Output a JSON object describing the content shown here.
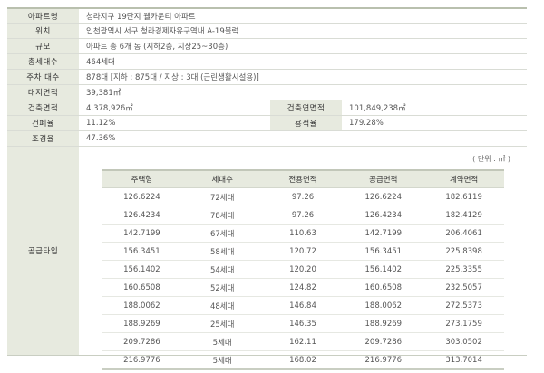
{
  "info": {
    "apartment_name": {
      "label": "아파트명",
      "value": "청라지구 19단지 웰카운티 아파트"
    },
    "location": {
      "label": "위치",
      "value": "인천광역시 서구 청라경제자유구역내 A-19블럭"
    },
    "scale": {
      "label": "규모",
      "value": "아파트 총 6개 동 (지하2층, 지상25~30층)"
    },
    "total_households": {
      "label": "총세대수",
      "value": "464세대"
    },
    "parking": {
      "label": "주차 대수",
      "value": "878대 [지하 : 875대 / 지상 : 3대 (근린생활시설용)]"
    },
    "site_area": {
      "label": "대지면적",
      "value": "39,381㎡"
    },
    "building_area": {
      "label": "건축면적",
      "value": "4,378,926㎡"
    },
    "gross_floor_area": {
      "label": "건축연면적",
      "value": "101,849,238㎡"
    },
    "building_coverage": {
      "label": "건폐율",
      "value": "11.12%"
    },
    "floor_area_ratio": {
      "label": "용적율",
      "value": "179.28%"
    },
    "landscape_ratio": {
      "label": "조경율",
      "value": "47.36%"
    },
    "supply_type": {
      "label": "공급타입"
    }
  },
  "supply_table": {
    "unit": "( 단위 : ㎡ )",
    "headers": [
      "주택형",
      "세대수",
      "전용면적",
      "공급면적",
      "계약면적"
    ],
    "rows": [
      [
        "126.6224",
        "72세대",
        "97.26",
        "126.6224",
        "182.6119"
      ],
      [
        "126.4234",
        "78세대",
        "97.26",
        "126.4234",
        "182.4129"
      ],
      [
        "142.7199",
        "67세대",
        "110.63",
        "142.7199",
        "206.4061"
      ],
      [
        "156.3451",
        "58세대",
        "120.72",
        "156.3451",
        "225.8398"
      ],
      [
        "156.1402",
        "54세대",
        "120.20",
        "156.1402",
        "225.3355"
      ],
      [
        "160.6508",
        "52세대",
        "124.82",
        "160.6508",
        "232.5057"
      ],
      [
        "188.0062",
        "48세대",
        "146.84",
        "188.0062",
        "272.5373"
      ],
      [
        "188.9269",
        "25세대",
        "146.35",
        "188.9269",
        "273.1759"
      ],
      [
        "209.7286",
        "5세대",
        "162.11",
        "209.7286",
        "303.0502"
      ],
      [
        "216.9776",
        "5세대",
        "168.02",
        "216.9776",
        "313.7014"
      ]
    ]
  }
}
